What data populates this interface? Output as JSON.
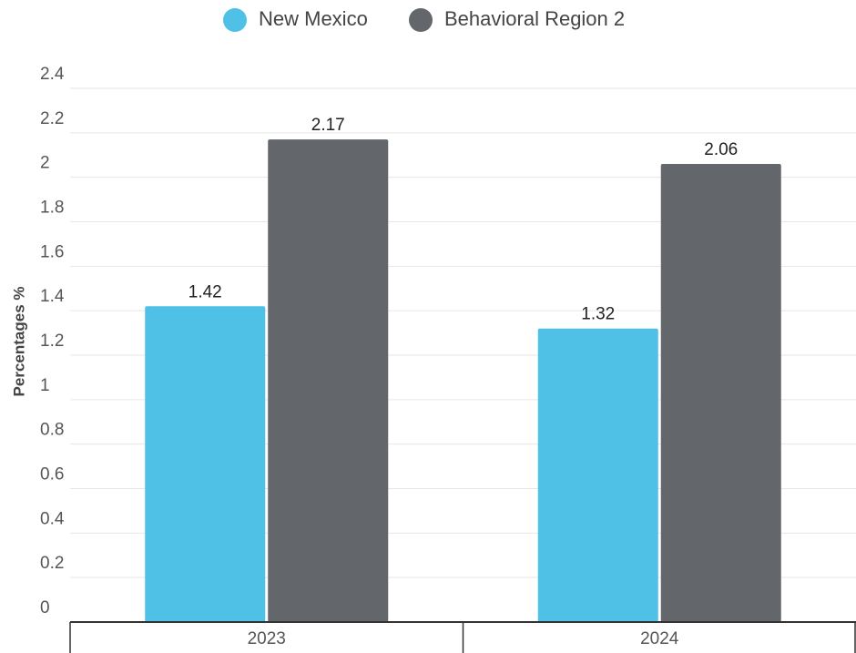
{
  "chart_data": {
    "type": "bar",
    "y_label": "Percentages %",
    "categories": [
      "2023",
      "2024"
    ],
    "series": [
      {
        "name": "New Mexico",
        "color": "#4fc1e6",
        "values": [
          1.42,
          1.32
        ]
      },
      {
        "name": "Behavioral Region 2",
        "color": "#63666b",
        "values": [
          2.17,
          2.06
        ]
      }
    ],
    "ylim": [
      0,
      2.4
    ],
    "yticks": [
      0,
      0.2,
      0.4,
      0.6,
      0.8,
      1,
      1.2,
      1.4,
      1.6,
      1.8,
      2,
      2.2,
      2.4
    ],
    "grid": true,
    "legend": "top"
  }
}
